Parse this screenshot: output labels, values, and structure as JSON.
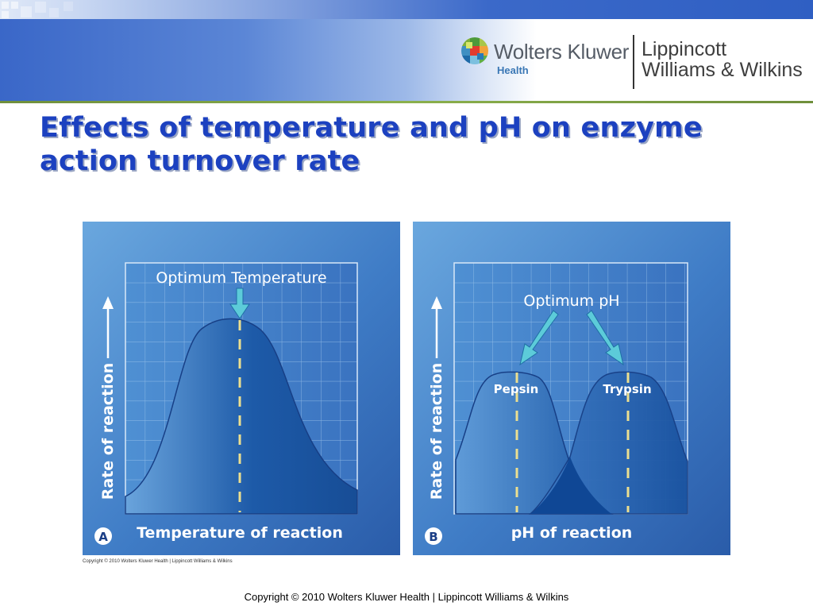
{
  "header": {
    "brand_name": "Wolters Kluwer",
    "brand_sub": "Health",
    "publisher_line1": "Lippincott",
    "publisher_line2": "Williams & Wilkins"
  },
  "title": {
    "line1": "Effects of temperature and pH on enzyme",
    "line2": "action turnover rate"
  },
  "figure": {
    "panel_a": {
      "letter": "A",
      "annotation": "Optimum Temperature",
      "y_label": "Rate of reaction",
      "x_label": "Temperature of reaction"
    },
    "panel_b": {
      "letter": "B",
      "annotation": "Optimum pH",
      "curve1_label": "Pepsin",
      "curve2_label": "Trypsin",
      "y_label": "Rate of reaction",
      "x_label": "pH of reaction"
    },
    "copyright": "Copyright © 2010 Wolters Kluwer Health | Lippincott Williams & Wilkins"
  },
  "footer": {
    "copyright": "Copyright © 2010 Wolters Kluwer Health | Lippincott Williams & Wilkins"
  },
  "colors": {
    "title": "#1c41c0",
    "panel_bg_light": "#5d9fdb",
    "panel_bg_dark": "#2d62b1",
    "curve_fill": "#1b56a4",
    "arrow": "#57c7d8",
    "dash": "#e8dc8c"
  },
  "icons": {
    "logo": "wolters-kluwer-mosaic-icon"
  }
}
